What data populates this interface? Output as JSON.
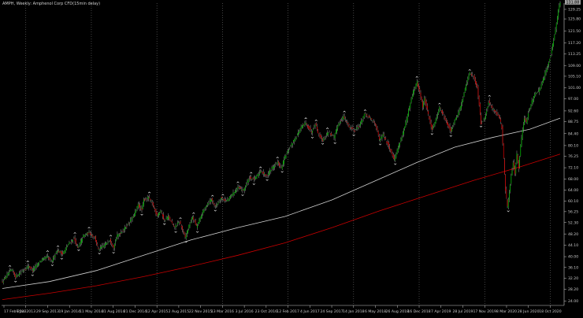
{
  "window": {
    "title": "AMPH, Weekly: Amphenol Corp CFD(15min delay)"
  },
  "colors": {
    "background": "#000000",
    "bull": "#00c800",
    "bear": "#e00000",
    "wick": "#d8d8d8",
    "ma_slow": "#c80000",
    "ma_fast": "#d0d0d0",
    "grid": "#707070",
    "axis_text": "#c8c8c8",
    "price_tag": "#a0a0a0"
  },
  "chart_data": {
    "type": "candlestick",
    "symbol": "AMPH",
    "timeframe": "Weekly",
    "title": "AMPH, Weekly: Amphenol Corp CFD(15min delay)",
    "y_ticks": [
      "129.25",
      "125.80",
      "121.50",
      "117.20",
      "113.25",
      "109.00",
      "105.10",
      "101.00",
      "97.00",
      "92.60",
      "88.75",
      "84.40",
      "80.10",
      "76.25",
      "72.10",
      "68.00",
      "64.00",
      "60.10",
      "56.25",
      "52.30",
      "48.20",
      "44.10",
      "40.00",
      "36.10",
      "32.20",
      "28.20",
      "24.00"
    ],
    "ylim": [
      22.4,
      131.5
    ],
    "x_ticks": [
      "17 Feb 2012",
      "9 Jan 2013",
      "29 Sep 2013",
      "19 Jan 2014",
      "11 May 2014",
      "31 Aug 2014",
      "21 Dec 2014",
      "12 Apr 2015",
      "2 Aug 2015",
      "22 Nov 2015",
      "13 Mar 2016",
      "3 Jul 2016",
      "23 Oct 2016",
      "12 Feb 2017",
      "4 Jun 2017",
      "24 Sep 2017",
      "14 Jan 2018",
      "6 May 2018",
      "26 Aug 2018",
      "16 Dec 2018",
      "7 Apr 2019",
      "28 Jul 2019",
      "17 Nov 2019",
      "8 Mar 2020",
      "28 Jun 2020",
      "18 Oct 2020"
    ],
    "grid": true,
    "current_price": "131.88",
    "anchors": [
      [
        0,
        31.0
      ],
      [
        6,
        33.8
      ],
      [
        10,
        35.2
      ],
      [
        14,
        32.8
      ],
      [
        20,
        34.5
      ],
      [
        28,
        36.6
      ],
      [
        32,
        35.0
      ],
      [
        40,
        38.4
      ],
      [
        48,
        40.0
      ],
      [
        52,
        38.0
      ],
      [
        58,
        42.3
      ],
      [
        64,
        41.0
      ],
      [
        70,
        44.5
      ],
      [
        76,
        46.6
      ],
      [
        80,
        43.0
      ],
      [
        86,
        47.5
      ],
      [
        92,
        48.6
      ],
      [
        98,
        47.0
      ],
      [
        102,
        42.5
      ],
      [
        108,
        44.0
      ],
      [
        114,
        46.2
      ],
      [
        118,
        43.5
      ],
      [
        122,
        47.6
      ],
      [
        128,
        49.5
      ],
      [
        134,
        52.0
      ],
      [
        140,
        55.0
      ],
      [
        144,
        58.8
      ],
      [
        148,
        56.8
      ],
      [
        150,
        60.4
      ],
      [
        155,
        61.4
      ],
      [
        160,
        58.5
      ],
      [
        164,
        55.0
      ],
      [
        168,
        56.5
      ],
      [
        172,
        53.0
      ],
      [
        176,
        54.5
      ],
      [
        182,
        50.6
      ],
      [
        188,
        52.5
      ],
      [
        194,
        47.0
      ],
      [
        198,
        51.0
      ],
      [
        202,
        54.5
      ],
      [
        206,
        50.8
      ],
      [
        210,
        54.0
      ],
      [
        216,
        58.4
      ],
      [
        222,
        60.8
      ],
      [
        226,
        58.0
      ],
      [
        232,
        61.2
      ],
      [
        238,
        60.0
      ],
      [
        244,
        62.5
      ],
      [
        250,
        64.8
      ],
      [
        256,
        64.0
      ],
      [
        262,
        68.5
      ],
      [
        268,
        68.0
      ],
      [
        274,
        71.0
      ],
      [
        280,
        69.0
      ],
      [
        286,
        72.0
      ],
      [
        292,
        74.0
      ],
      [
        296,
        72.0
      ],
      [
        300,
        76.0
      ],
      [
        306,
        80.0
      ],
      [
        312,
        83.5
      ],
      [
        318,
        87.0
      ],
      [
        322,
        88.2
      ],
      [
        328,
        85.0
      ],
      [
        332,
        88.0
      ],
      [
        336,
        84.0
      ],
      [
        340,
        82.0
      ],
      [
        346,
        85.0
      ],
      [
        352,
        83.0
      ],
      [
        356,
        87.5
      ],
      [
        362,
        90.5
      ],
      [
        368,
        87.0
      ],
      [
        374,
        85.5
      ],
      [
        380,
        88.0
      ],
      [
        384,
        91.5
      ],
      [
        390,
        90.0
      ],
      [
        396,
        88.0
      ],
      [
        400,
        82.0
      ],
      [
        404,
        84.0
      ],
      [
        410,
        80.0
      ],
      [
        416,
        75.0
      ],
      [
        420,
        79.5
      ],
      [
        424,
        83.5
      ],
      [
        428,
        88.0
      ],
      [
        432,
        94.0
      ],
      [
        436,
        99.5
      ],
      [
        440,
        103.0
      ],
      [
        444,
        98.0
      ],
      [
        446,
        94.0
      ],
      [
        448,
        97.0
      ],
      [
        452,
        91.0
      ],
      [
        456,
        86.0
      ],
      [
        460,
        89.5
      ],
      [
        464,
        94.0
      ],
      [
        468,
        91.0
      ],
      [
        472,
        88.0
      ],
      [
        476,
        85.5
      ],
      [
        480,
        89.0
      ],
      [
        484,
        92.0
      ],
      [
        488,
        96.0
      ],
      [
        492,
        102.0
      ],
      [
        496,
        106.5
      ],
      [
        500,
        105.0
      ],
      [
        504,
        101.0
      ],
      [
        506,
        95.0
      ],
      [
        508,
        88.0
      ],
      [
        512,
        90.0
      ],
      [
        516,
        96.0
      ],
      [
        520,
        93.5
      ],
      [
        524,
        92.0
      ],
      [
        528,
        90.0
      ],
      [
        530,
        86.5
      ],
      [
        532,
        75.0
      ],
      [
        534,
        64.0
      ],
      [
        536,
        58.0
      ],
      [
        538,
        63.0
      ],
      [
        540,
        69.0
      ],
      [
        542,
        74.0
      ],
      [
        544,
        70.0
      ],
      [
        546,
        77.0
      ],
      [
        548,
        72.0
      ],
      [
        550,
        80.0
      ],
      [
        552,
        86.0
      ],
      [
        554,
        90.0
      ],
      [
        556,
        88.5
      ],
      [
        558,
        92.0
      ],
      [
        562,
        96.0
      ],
      [
        566,
        99.0
      ],
      [
        570,
        100.0
      ],
      [
        574,
        104.0
      ],
      [
        578,
        108.0
      ],
      [
        582,
        113.0
      ],
      [
        586,
        120.0
      ],
      [
        588,
        124.5
      ],
      [
        590,
        129.0
      ],
      [
        592,
        131.9
      ]
    ],
    "series": [
      {
        "name": "",
        "type": "line",
        "points": [
          [
            0,
            24.5
          ],
          [
            50,
            26.8
          ],
          [
            100,
            29.5
          ],
          [
            150,
            32.8
          ],
          [
            200,
            36.5
          ],
          [
            250,
            40.5
          ],
          [
            300,
            45.0
          ],
          [
            350,
            50.5
          ],
          [
            400,
            56.5
          ],
          [
            450,
            62.0
          ],
          [
            500,
            67.5
          ],
          [
            550,
            72.5
          ],
          [
            592,
            77.0
          ]
        ]
      },
      {
        "name": "",
        "type": "line",
        "points": [
          [
            0,
            28.5
          ],
          [
            50,
            31.0
          ],
          [
            100,
            35.0
          ],
          [
            150,
            40.5
          ],
          [
            200,
            46.0
          ],
          [
            250,
            50.5
          ],
          [
            300,
            54.5
          ],
          [
            350,
            60.5
          ],
          [
            400,
            68.0
          ],
          [
            440,
            74.0
          ],
          [
            480,
            79.5
          ],
          [
            520,
            83.0
          ],
          [
            560,
            86.0
          ],
          [
            592,
            90.0
          ]
        ]
      }
    ],
    "bar_count": 593
  }
}
